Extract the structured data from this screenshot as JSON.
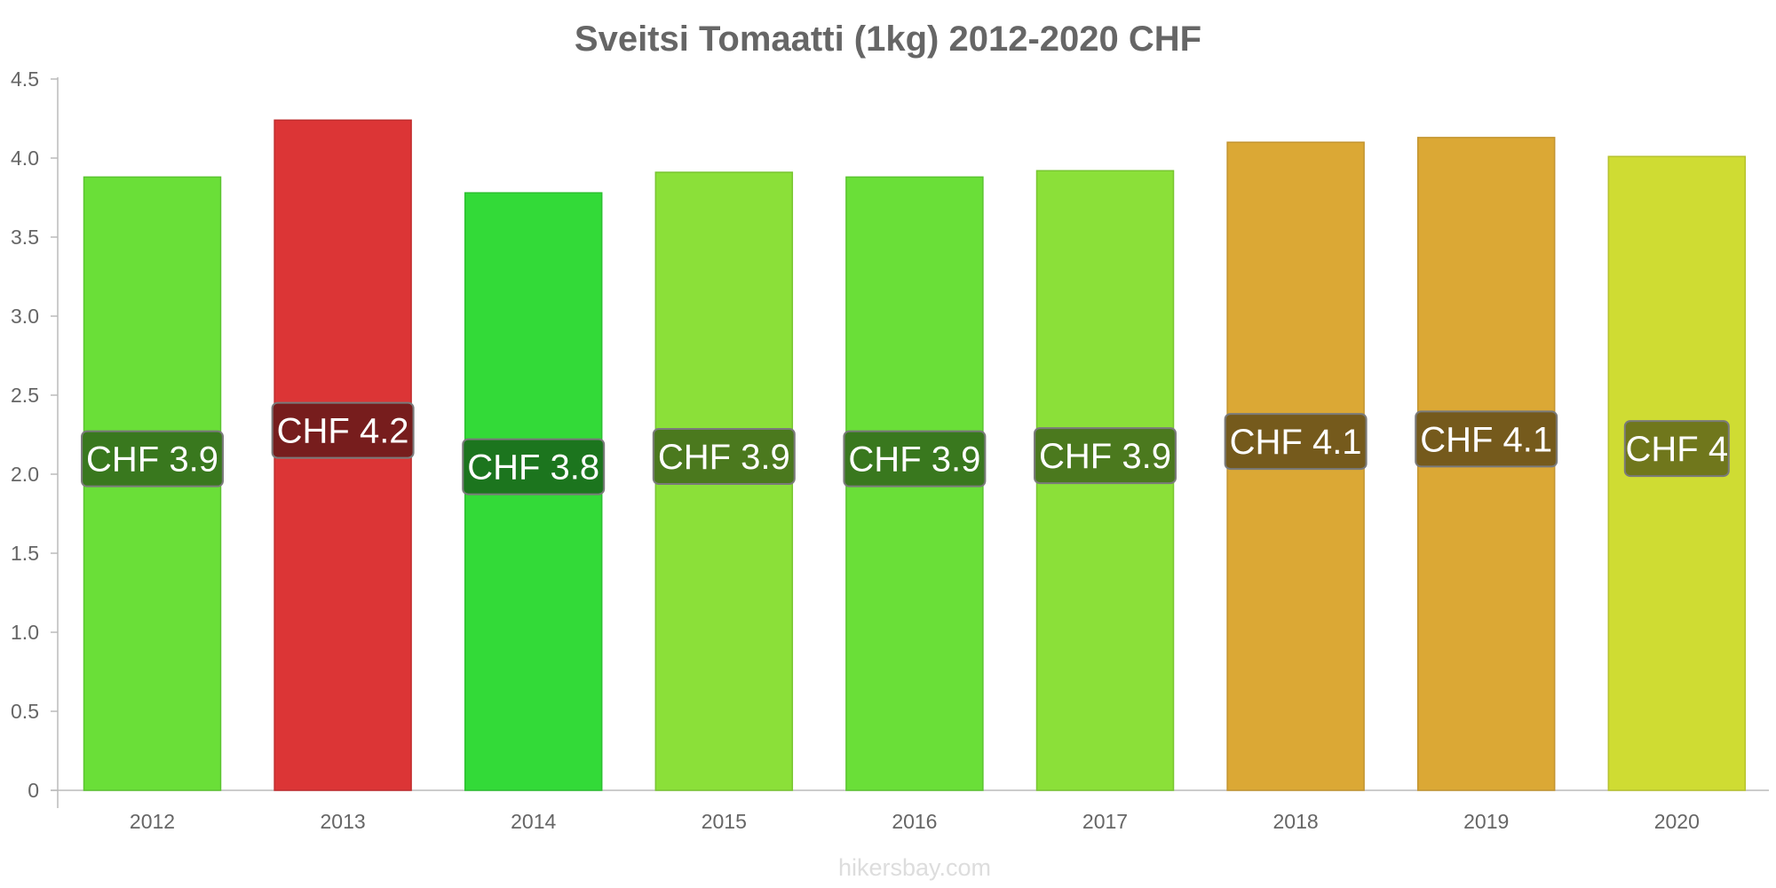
{
  "chart_data": {
    "type": "bar",
    "title": "Sveitsi Tomaatti (1kg) 2012-2020 CHF",
    "xlabel": "",
    "ylabel": "",
    "ylim": [
      0,
      4.5
    ],
    "yticks": [
      0,
      0.5,
      1.0,
      1.5,
      2.0,
      2.5,
      3.0,
      3.5,
      4.0,
      4.5
    ],
    "ytick_labels": [
      "0",
      "0.5",
      "1.0",
      "1.5",
      "2.0",
      "2.5",
      "3.0",
      "3.5",
      "4.0",
      "4.5"
    ],
    "categories": [
      "2012",
      "2013",
      "2014",
      "2015",
      "2016",
      "2017",
      "2018",
      "2019",
      "2020"
    ],
    "values": [
      3.88,
      4.24,
      3.78,
      3.91,
      3.88,
      3.92,
      4.1,
      4.13,
      4.01
    ],
    "data_labels": [
      "CHF 3.9",
      "CHF 4.2",
      "CHF 3.8",
      "CHF 3.9",
      "CHF 3.9",
      "CHF 3.9",
      "CHF 4.1",
      "CHF 4.1",
      "CHF 4"
    ],
    "bar_colors": [
      "#6adf38",
      "#dc3536",
      "#33da38",
      "#8be039",
      "#6adf38",
      "#8be039",
      "#dba835",
      "#dba835",
      "#cfdc33"
    ],
    "bar_border_colors": [
      "#5bc430",
      "#c02d2e",
      "#2bc030",
      "#78c531",
      "#5bc430",
      "#78c531",
      "#c29430",
      "#c29430",
      "#b6c22d"
    ],
    "label_bg_colors": [
      "#356f1c",
      "#6e1b1b",
      "#1a6d1c",
      "#45701c",
      "#356f1c",
      "#45701c",
      "#6d541a",
      "#6d541a",
      "#686e1a"
    ],
    "grid": false,
    "legend": "none"
  },
  "watermark": "hikersbay.com"
}
